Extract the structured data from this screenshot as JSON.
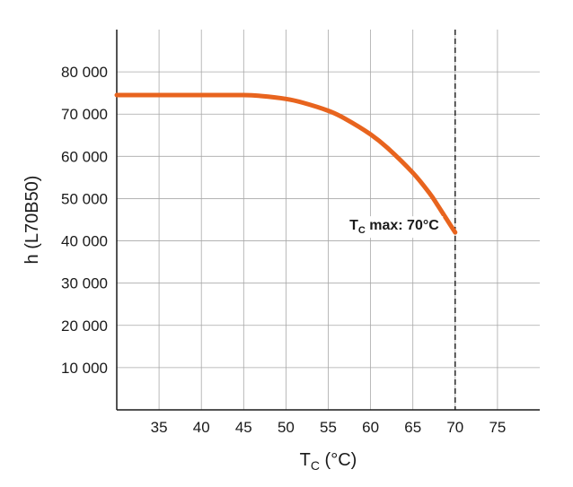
{
  "chart_data": {
    "type": "line",
    "xlabel": {
      "main": "T",
      "sub": "C",
      "unit": " (°C)"
    },
    "ylabel": "h (L70B50)",
    "xlim": [
      30,
      80
    ],
    "ylim": [
      0,
      90000
    ],
    "x_ticks": [
      35,
      40,
      45,
      50,
      55,
      60,
      65,
      70,
      75
    ],
    "y_ticks": [
      10000,
      20000,
      30000,
      40000,
      50000,
      60000,
      70000,
      80000
    ],
    "x_tick_labels": [
      "35",
      "40",
      "45",
      "50",
      "55",
      "60",
      "65",
      "70",
      "75"
    ],
    "y_tick_labels": [
      "10 000",
      "20 000",
      "30 000",
      "40 000",
      "50 000",
      "60 000",
      "70 000",
      "80 000"
    ],
    "grid": true,
    "series": [
      {
        "color": "#e8641e",
        "x": [
          30,
          35,
          40,
          45,
          47,
          50,
          52,
          55,
          57,
          60,
          62,
          65,
          67,
          68,
          69,
          70
        ],
        "y": [
          74500,
          74500,
          74500,
          74500,
          74300,
          73600,
          72700,
          70800,
          68900,
          65200,
          62000,
          56100,
          51200,
          48200,
          45100,
          42000
        ]
      }
    ],
    "threshold": {
      "x": 70,
      "style": "dashed",
      "label": {
        "main": "T",
        "sub": "C",
        "rest": " max: 70°C"
      }
    }
  }
}
